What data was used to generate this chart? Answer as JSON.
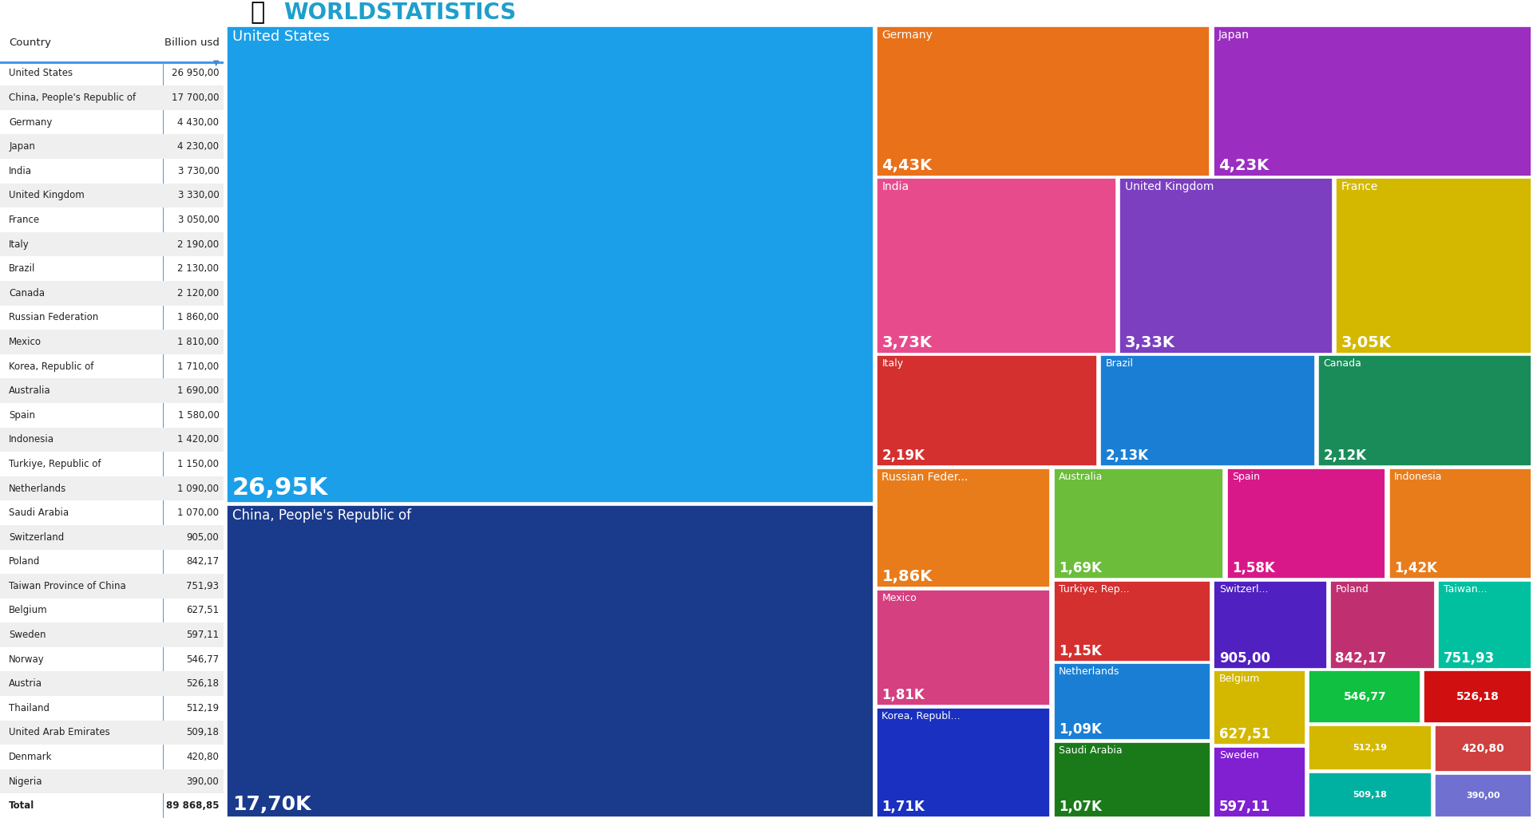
{
  "countries": [
    "United States",
    "China, People's Republic of",
    "Germany",
    "Japan",
    "India",
    "United Kingdom",
    "France",
    "Italy",
    "Brazil",
    "Canada",
    "Russian Federation",
    "Mexico",
    "Korea, Republic of",
    "Australia",
    "Spain",
    "Indonesia",
    "Turkiye, Republic of",
    "Netherlands",
    "Saudi Arabia",
    "Switzerland",
    "Poland",
    "Taiwan Province of China",
    "Belgium",
    "Sweden",
    "Norway",
    "Austria",
    "Thailand",
    "United Arab Emirates",
    "Denmark",
    "Nigeria"
  ],
  "values": [
    26950,
    17700,
    4430,
    4230,
    3730,
    3330,
    3050,
    2190,
    2130,
    2120,
    1860,
    1810,
    1710,
    1690,
    1580,
    1420,
    1150,
    1090,
    1070,
    905,
    842.17,
    751.93,
    627.51,
    597.11,
    546.77,
    526.18,
    512.19,
    509.18,
    420.8,
    390.0
  ],
  "table_countries": [
    "United States",
    "China, People's Republic of",
    "Germany",
    "Japan",
    "India",
    "United Kingdom",
    "France",
    "Italy",
    "Brazil",
    "Canada",
    "Russian Federation",
    "Mexico",
    "Korea, Republic of",
    "Australia",
    "Spain",
    "Indonesia",
    "Turkiye, Republic of",
    "Netherlands",
    "Saudi Arabia",
    "Switzerland",
    "Poland",
    "Taiwan Province of China",
    "Belgium",
    "Sweden",
    "Norway",
    "Austria",
    "Thailand",
    "United Arab Emirates",
    "Denmark",
    "Nigeria",
    "Total"
  ],
  "table_values": [
    "26 950,00",
    "17 700,00",
    "4 430,00",
    "4 230,00",
    "3 730,00",
    "3 330,00",
    "3 050,00",
    "2 190,00",
    "2 130,00",
    "2 120,00",
    "1 860,00",
    "1 810,00",
    "1 710,00",
    "1 690,00",
    "1 580,00",
    "1 420,00",
    "1 150,00",
    "1 090,00",
    "1 070,00",
    "905,00",
    "842,17",
    "751,93",
    "627,51",
    "597,11",
    "546,77",
    "526,18",
    "512,19",
    "509,18",
    "420,80",
    "390,00",
    "89 868,85"
  ],
  "color_map": {
    "United States": "#1B9FE8",
    "China, People's Republic of": "#1A3A8C",
    "Germany": "#E8711A",
    "Japan": "#9B2EC0",
    "India": "#E84B8C",
    "United Kingdom": "#7B3FC0",
    "France": "#D4B800",
    "Italy": "#D43030",
    "Brazil": "#1A7FD4",
    "Canada": "#1A8C5A",
    "Russian Federation": "#E87C1A",
    "Mexico": "#D44080",
    "Korea, Republic of": "#1A30C0",
    "Australia": "#6BBD3A",
    "Spain": "#D81888",
    "Indonesia": "#E87C1A",
    "Turkiye, Republic of": "#D43030",
    "Netherlands": "#1A7FD4",
    "Saudi Arabia": "#1A7A1A",
    "Switzerland": "#5020C0",
    "Poland": "#C03070",
    "Taiwan Province of China": "#00C0A0",
    "Belgium": "#D4B800",
    "Sweden": "#8020D0",
    "Norway": "#10C040",
    "Austria": "#D01010",
    "Thailand": "#D4B800",
    "United Arab Emirates": "#00B0A0",
    "Denmark": "#D04040",
    "Nigeria": "#7070D0"
  },
  "header_title": "WORLDSTATISTICS",
  "header_color": "#1E9FCC"
}
